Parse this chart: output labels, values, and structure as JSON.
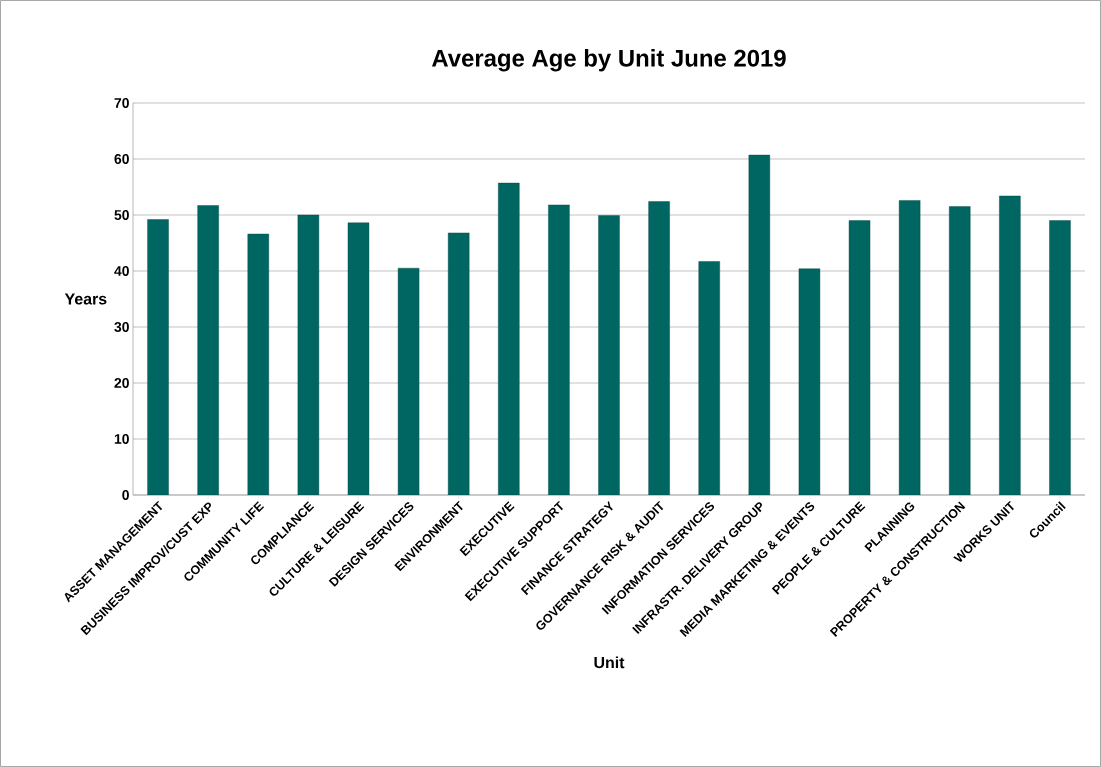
{
  "chart_data": {
    "type": "bar",
    "title": "Average Age by Unit June 2019",
    "xlabel": "Unit",
    "ylabel": "Years",
    "categories": [
      "ASSET MANAGEMENT",
      "BUSINESS IMPROV/CUST EXP",
      "COMMUNITY LIFE",
      "COMPLIANCE",
      "CULTURE & LEISURE",
      "DESIGN SERVICES",
      "ENVIRONMENT",
      "EXECUTIVE",
      "EXECUTIVE SUPPORT",
      "FINANCE STRATEGY",
      "GOVERNANCE RISK & AUDIT",
      "INFORMATION SERVICES",
      "INFRASTR. DELIVERY GROUP",
      "MEDIA MARKETING & EVENTS",
      "PEOPLE & CULTURE",
      "PLANNING",
      "PROPERTY & CONSTRUCTION",
      "WORKS UNIT",
      "Council"
    ],
    "values": [
      49.2,
      51.7,
      46.6,
      50.0,
      48.6,
      40.5,
      46.8,
      55.7,
      51.8,
      49.9,
      52.4,
      41.7,
      60.7,
      40.4,
      49.0,
      52.6,
      51.5,
      53.4,
      49.0
    ],
    "color": "#006661",
    "ylim": [
      0,
      70
    ],
    "yticks": [
      0,
      10,
      20,
      30,
      40,
      50,
      60,
      70
    ],
    "grid": "y"
  }
}
